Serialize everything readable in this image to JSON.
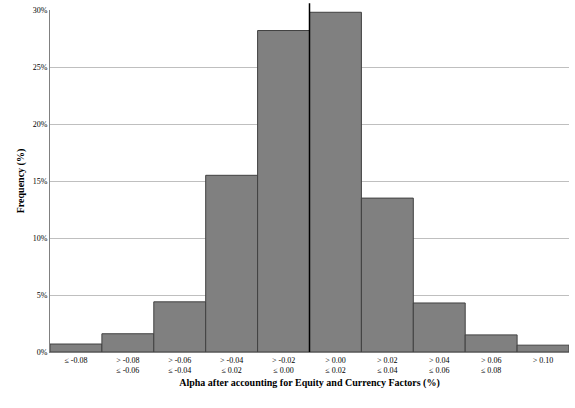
{
  "chart_data": {
    "type": "bar",
    "x_label": "Alpha after accounting for Equity and Currency Factors (%)",
    "y_label": "Frequency (%)",
    "categories": [
      "≤ -0.08",
      "> -0.08\n≤ -0.06",
      "> -0.06\n≤ -0.04",
      "> -0.04\n≤ 0.02",
      "> -0.02\n≤ 0.00",
      "> 0.00\n≤ 0.02",
      "> 0.02\n≤ 0.04",
      "> 0.04\n≤ 0.06",
      "> 0.06\n≤ 0.08",
      "> 0.10"
    ],
    "values": [
      0.7,
      1.6,
      4.4,
      15.5,
      28.2,
      29.8,
      13.5,
      4.3,
      1.5,
      0.6
    ],
    "color": "#808080",
    "ylim": [
      0,
      30
    ],
    "yticks": [
      {
        "value": 0,
        "label": "0%"
      },
      {
        "value": 5,
        "label": "5%"
      },
      {
        "value": 10,
        "label": "10%"
      },
      {
        "value": 15,
        "label": "15%"
      },
      {
        "value": 20,
        "label": "20%"
      },
      {
        "value": 25,
        "label": "25%"
      },
      {
        "value": 30,
        "label": "30%"
      }
    ],
    "grid": true
  }
}
